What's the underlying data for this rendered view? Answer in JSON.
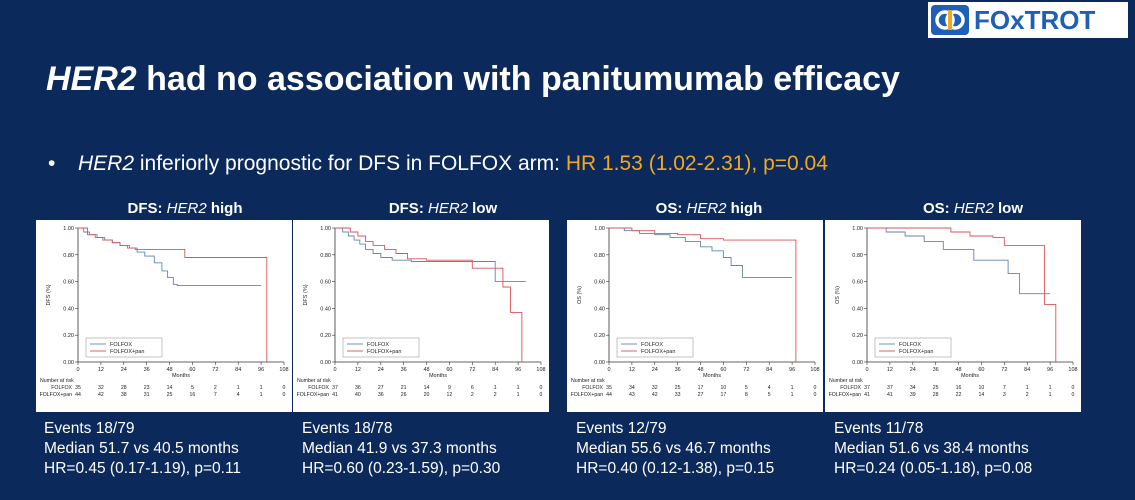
{
  "brand": {
    "name": "FOxTROT"
  },
  "slide": {
    "title_gene": "HER2",
    "title_rest": " had no association with panitumumab efficacy",
    "bullet_symbol": "•",
    "bullet_gene": "HER2",
    "bullet_text": " inferiorly prognostic for DFS in FOLFOX arm: ",
    "bullet_highlight": "HR 1.53 (1.02-2.31), p=0.04"
  },
  "colors": {
    "background": "#0b2a5b",
    "folfox": "#5f86b8",
    "folfox_pan": "#d9555b",
    "highlight": "#f3a81e"
  },
  "chart_data": [
    {
      "type": "line",
      "title_prefix": "DFS: ",
      "title_gene": "HER2",
      "title_suffix": " high",
      "ylabel": "DFS (%)",
      "xlabel": "Months",
      "xlim": [
        0,
        108
      ],
      "ylim": [
        0,
        1
      ],
      "xticks": [
        0,
        12,
        24,
        36,
        48,
        60,
        72,
        84,
        96,
        108
      ],
      "yticks": [
        "0.00",
        "0.20",
        "0.40",
        "0.60",
        "0.80",
        "1.00"
      ],
      "legend_position": "bottom-left",
      "series": [
        {
          "name": "FOLFOX",
          "points": [
            [
              0,
              1
            ],
            [
              3,
              0.97
            ],
            [
              6,
              0.95
            ],
            [
              10,
              0.93
            ],
            [
              14,
              0.91
            ],
            [
              18,
              0.89
            ],
            [
              22,
              0.87
            ],
            [
              27,
              0.85
            ],
            [
              31,
              0.82
            ],
            [
              35,
              0.79
            ],
            [
              40,
              0.74
            ],
            [
              44,
              0.68
            ],
            [
              47,
              0.63
            ],
            [
              50,
              0.58
            ],
            [
              52,
              0.57
            ],
            [
              96,
              0.57
            ]
          ]
        },
        {
          "name": "FOLFOX+pan",
          "points": [
            [
              0,
              1
            ],
            [
              5,
              0.95
            ],
            [
              9,
              0.93
            ],
            [
              13,
              0.91
            ],
            [
              18,
              0.89
            ],
            [
              22,
              0.87
            ],
            [
              26,
              0.85
            ],
            [
              30,
              0.84
            ],
            [
              52,
              0.84
            ],
            [
              56,
              0.78
            ],
            [
              97,
              0.78
            ],
            [
              99,
              0.0
            ]
          ]
        }
      ],
      "risk_header": "Number at risk",
      "risk_table": [
        {
          "name": "FOLFOX",
          "values": [
            "35",
            "32",
            "28",
            "23",
            "14",
            "5",
            "2",
            "1",
            "1",
            "0"
          ]
        },
        {
          "name": "FOLFOX+pan",
          "values": [
            "44",
            "42",
            "38",
            "31",
            "25",
            "16",
            "7",
            "4",
            "1",
            "0"
          ]
        }
      ],
      "stats": [
        "Events 18/79",
        "Median 51.7 vs 40.5 months",
        "HR=0.45 (0.17-1.19), p=0.11"
      ]
    },
    {
      "type": "line",
      "title_prefix": "DFS: ",
      "title_gene": "HER2",
      "title_suffix": " low",
      "ylabel": "DFS (%)",
      "xlabel": "Months",
      "xlim": [
        0,
        108
      ],
      "ylim": [
        0,
        1
      ],
      "xticks": [
        0,
        12,
        24,
        36,
        48,
        60,
        72,
        84,
        96,
        108
      ],
      "yticks": [
        "0.00",
        "0.20",
        "0.40",
        "0.60",
        "0.80",
        "1.00"
      ],
      "legend_position": "bottom-left",
      "series": [
        {
          "name": "FOLFOX",
          "points": [
            [
              0,
              1
            ],
            [
              4,
              0.97
            ],
            [
              7,
              0.94
            ],
            [
              10,
              0.91
            ],
            [
              13,
              0.88
            ],
            [
              16,
              0.84
            ],
            [
              20,
              0.81
            ],
            [
              24,
              0.78
            ],
            [
              30,
              0.76
            ],
            [
              40,
              0.75
            ],
            [
              72,
              0.75
            ],
            [
              84,
              0.6
            ],
            [
              100,
              0.6
            ]
          ]
        },
        {
          "name": "FOLFOX+pan",
          "points": [
            [
              0,
              1
            ],
            [
              8,
              0.97
            ],
            [
              12,
              0.94
            ],
            [
              16,
              0.9
            ],
            [
              20,
              0.87
            ],
            [
              26,
              0.84
            ],
            [
              32,
              0.81
            ],
            [
              38,
              0.77
            ],
            [
              48,
              0.76
            ],
            [
              64,
              0.76
            ],
            [
              72,
              0.7
            ],
            [
              88,
              0.56
            ],
            [
              92,
              0.37
            ],
            [
              97,
              0.37
            ],
            [
              98,
              0.0
            ]
          ]
        }
      ],
      "risk_header": "Number at risk",
      "risk_table": [
        {
          "name": "FOLFOX",
          "values": [
            "37",
            "36",
            "27",
            "21",
            "14",
            "9",
            "6",
            "1",
            "1",
            "0"
          ]
        },
        {
          "name": "FOLFOX+pan",
          "values": [
            "41",
            "40",
            "36",
            "26",
            "20",
            "12",
            "2",
            "2",
            "1",
            "0"
          ]
        }
      ],
      "stats": [
        "Events 18/78",
        "Median 41.9 vs 37.3 months",
        "HR=0.60 (0.23-1.59), p=0.30"
      ]
    },
    {
      "type": "line",
      "title_prefix": "OS: ",
      "title_gene": "HER2",
      "title_suffix": " high",
      "ylabel": "OS (%)",
      "xlabel": "Months",
      "xlim": [
        0,
        108
      ],
      "ylim": [
        0,
        1
      ],
      "xticks": [
        0,
        12,
        24,
        36,
        48,
        60,
        72,
        84,
        96,
        108
      ],
      "yticks": [
        "0.00",
        "0.20",
        "0.40",
        "0.60",
        "0.80",
        "1.00"
      ],
      "legend_position": "bottom-left",
      "series": [
        {
          "name": "FOLFOX",
          "points": [
            [
              0,
              1
            ],
            [
              8,
              0.98
            ],
            [
              16,
              0.96
            ],
            [
              24,
              0.95
            ],
            [
              32,
              0.93
            ],
            [
              40,
              0.9
            ],
            [
              48,
              0.86
            ],
            [
              54,
              0.83
            ],
            [
              60,
              0.78
            ],
            [
              64,
              0.72
            ],
            [
              70,
              0.63
            ],
            [
              96,
              0.63
            ]
          ]
        },
        {
          "name": "FOLFOX+pan",
          "points": [
            [
              0,
              1
            ],
            [
              12,
              0.98
            ],
            [
              24,
              0.96
            ],
            [
              36,
              0.95
            ],
            [
              48,
              0.92
            ],
            [
              60,
              0.91
            ],
            [
              97,
              0.91
            ],
            [
              98,
              0.0
            ]
          ]
        }
      ],
      "risk_header": "Number at risk",
      "risk_table": [
        {
          "name": "FOLFOX",
          "values": [
            "35",
            "34",
            "32",
            "25",
            "17",
            "10",
            "5",
            "4",
            "1",
            "0"
          ]
        },
        {
          "name": "FOLFOX+pan",
          "values": [
            "44",
            "43",
            "42",
            "33",
            "27",
            "17",
            "8",
            "5",
            "1",
            "0"
          ]
        }
      ],
      "stats": [
        "Events 12/79",
        "Median 55.6 vs 46.7 months",
        "HR=0.40 (0.12-1.38), p=0.15"
      ]
    },
    {
      "type": "line",
      "title_prefix": "OS: ",
      "title_gene": "HER2",
      "title_suffix": " low",
      "ylabel": "OS (%)",
      "xlabel": "Months",
      "xlim": [
        0,
        108
      ],
      "ylim": [
        0,
        1
      ],
      "xticks": [
        0,
        12,
        24,
        36,
        48,
        60,
        72,
        84,
        96,
        108
      ],
      "yticks": [
        "0.00",
        "0.20",
        "0.40",
        "0.60",
        "0.80",
        "1.00"
      ],
      "legend_position": "bottom-left",
      "series": [
        {
          "name": "FOLFOX",
          "points": [
            [
              0,
              1
            ],
            [
              10,
              0.97
            ],
            [
              20,
              0.94
            ],
            [
              30,
              0.9
            ],
            [
              40,
              0.84
            ],
            [
              54,
              0.84
            ],
            [
              56,
              0.76
            ],
            [
              72,
              0.76
            ],
            [
              74,
              0.66
            ],
            [
              80,
              0.51
            ],
            [
              96,
              0.51
            ]
          ]
        },
        {
          "name": "FOLFOX+pan",
          "points": [
            [
              0,
              1
            ],
            [
              36,
              1.0
            ],
            [
              44,
              0.97
            ],
            [
              54,
              0.94
            ],
            [
              66,
              0.93
            ],
            [
              72,
              0.87
            ],
            [
              90,
              0.87
            ],
            [
              93,
              0.43
            ],
            [
              98,
              0.43
            ],
            [
              99,
              0.0
            ]
          ]
        }
      ],
      "risk_header": "Number at risk",
      "risk_table": [
        {
          "name": "FOLFOX",
          "values": [
            "37",
            "37",
            "34",
            "25",
            "16",
            "10",
            "7",
            "1",
            "1",
            "0"
          ]
        },
        {
          "name": "FOLFOX+pan",
          "values": [
            "41",
            "41",
            "39",
            "28",
            "22",
            "14",
            "3",
            "2",
            "1",
            "0"
          ]
        }
      ],
      "stats": [
        "Events 11/78",
        "Median 51.6 vs 38.4 months",
        "HR=0.24 (0.05-1.18), p=0.08"
      ]
    }
  ]
}
